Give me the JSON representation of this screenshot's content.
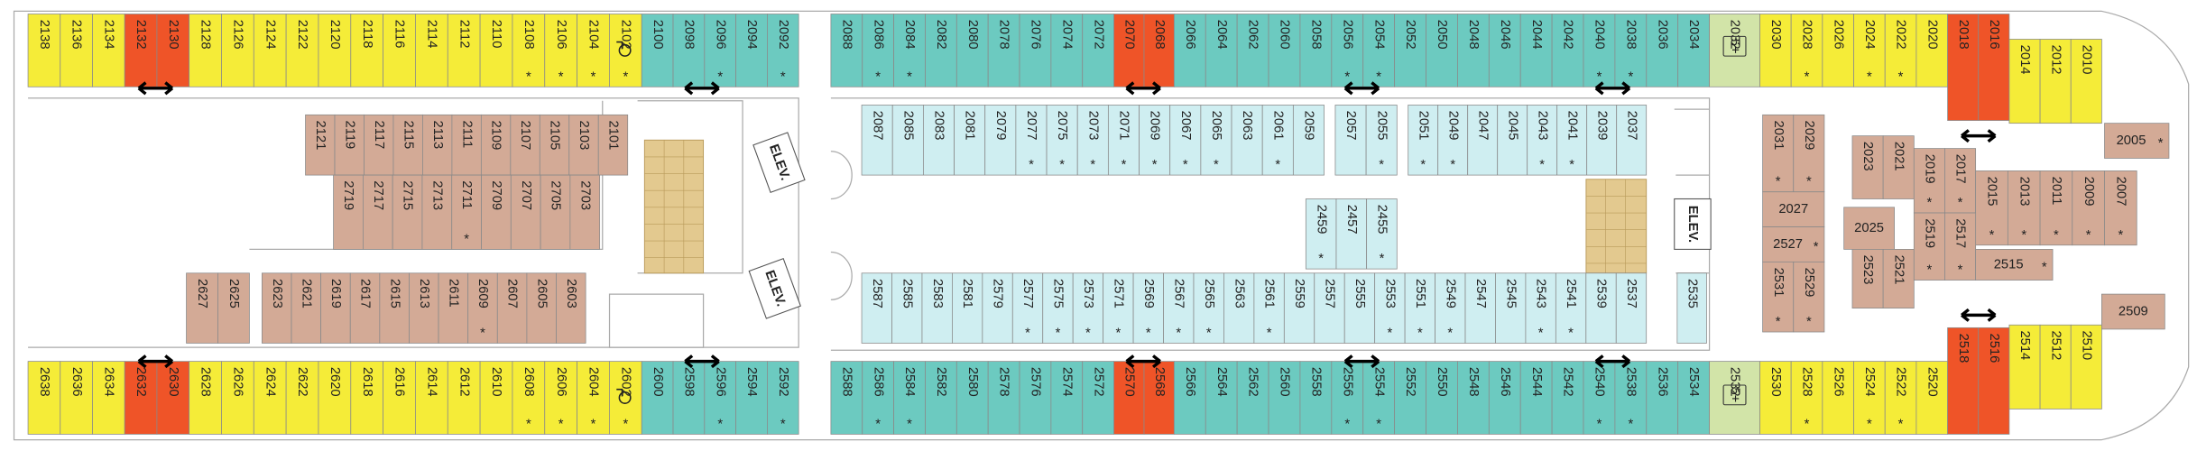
{
  "groups": [
    {
      "cabins": [
        {
          "no": "2138"
        },
        {
          "no": "2136"
        },
        {
          "no": "2134"
        }
      ]
    },
    {
      "cabins": [
        {
          "no": "2132"
        },
        {
          "no": "2130"
        }
      ]
    },
    {
      "cabins": [
        {
          "no": "2128"
        },
        {
          "no": "2126"
        },
        {
          "no": "2124"
        },
        {
          "no": "2122"
        },
        {
          "no": "2120"
        },
        {
          "no": "2118"
        },
        {
          "no": "2116"
        },
        {
          "no": "2114"
        },
        {
          "no": "2112"
        },
        {
          "no": "2110"
        },
        {
          "no": "2108",
          "mark": "*"
        },
        {
          "no": "2106",
          "mark": "*"
        },
        {
          "no": "2104",
          "mark": "*"
        },
        {
          "no": "2102",
          "mark": "*"
        }
      ]
    },
    {
      "cabins": [
        {
          "no": "2100"
        },
        {
          "no": "2098"
        },
        {
          "no": "2096",
          "mark": "*"
        },
        {
          "no": "2094"
        },
        {
          "no": "2092",
          "mark": "*"
        }
      ]
    },
    {
      "cabins": [
        {
          "no": "2088"
        },
        {
          "no": "2086",
          "mark": "*"
        },
        {
          "no": "2084",
          "mark": "*"
        },
        {
          "no": "2082"
        },
        {
          "no": "2080"
        },
        {
          "no": "2078"
        },
        {
          "no": "2076"
        },
        {
          "no": "2074"
        },
        {
          "no": "2072"
        }
      ]
    },
    {
      "cabins": [
        {
          "no": "2070"
        },
        {
          "no": "2068"
        }
      ]
    },
    {
      "cabins": [
        {
          "no": "2066"
        },
        {
          "no": "2064"
        },
        {
          "no": "2062"
        },
        {
          "no": "2060"
        },
        {
          "no": "2058"
        },
        {
          "no": "2056",
          "mark": "*"
        },
        {
          "no": "2054",
          "mark": "*"
        },
        {
          "no": "2052"
        },
        {
          "no": "2050"
        },
        {
          "no": "2048"
        },
        {
          "no": "2046"
        },
        {
          "no": "2044"
        },
        {
          "no": "2042"
        },
        {
          "no": "2040",
          "mark": "*"
        },
        {
          "no": "2038",
          "mark": "*"
        },
        {
          "no": "2036"
        },
        {
          "no": "2034"
        }
      ]
    },
    {
      "cabins": [
        {
          "no": "2032"
        }
      ]
    },
    {
      "cabins": [
        {
          "no": "2030"
        },
        {
          "no": "2028",
          "mark": "*"
        },
        {
          "no": "2026"
        },
        {
          "no": "2024",
          "mark": "*"
        },
        {
          "no": "2022",
          "mark": "*"
        },
        {
          "no": "2020"
        }
      ]
    },
    {
      "cabins": [
        {
          "no": "2018"
        },
        {
          "no": "2016"
        }
      ]
    },
    {
      "cabins": [
        {
          "no": "2014"
        },
        {
          "no": "2012"
        },
        {
          "no": "2010"
        }
      ]
    },
    {
      "cabins": [
        {
          "no": "2638"
        },
        {
          "no": "2636"
        },
        {
          "no": "2634"
        }
      ]
    },
    {
      "cabins": [
        {
          "no": "2632"
        },
        {
          "no": "2630"
        }
      ]
    },
    {
      "cabins": [
        {
          "no": "2628"
        },
        {
          "no": "2626"
        },
        {
          "no": "2624"
        },
        {
          "no": "2622"
        },
        {
          "no": "2620"
        },
        {
          "no": "2618"
        },
        {
          "no": "2616"
        },
        {
          "no": "2614"
        },
        {
          "no": "2612"
        },
        {
          "no": "2610"
        },
        {
          "no": "2608",
          "mark": "*"
        },
        {
          "no": "2606",
          "mark": "*"
        },
        {
          "no": "2604",
          "mark": "*"
        },
        {
          "no": "2602",
          "mark": "*"
        }
      ]
    },
    {
      "cabins": [
        {
          "no": "2600"
        },
        {
          "no": "2598"
        },
        {
          "no": "2596",
          "mark": "*"
        },
        {
          "no": "2594"
        },
        {
          "no": "2592",
          "mark": "*"
        }
      ]
    },
    {
      "cabins": [
        {
          "no": "2588"
        },
        {
          "no": "2586",
          "mark": "*"
        },
        {
          "no": "2584",
          "mark": "*"
        },
        {
          "no": "2582"
        },
        {
          "no": "2580"
        },
        {
          "no": "2578"
        },
        {
          "no": "2576"
        },
        {
          "no": "2574"
        },
        {
          "no": "2572"
        }
      ]
    },
    {
      "cabins": [
        {
          "no": "2570"
        },
        {
          "no": "2568"
        }
      ]
    },
    {
      "cabins": [
        {
          "no": "2566"
        },
        {
          "no": "2564"
        },
        {
          "no": "2562"
        },
        {
          "no": "2560"
        },
        {
          "no": "2558"
        },
        {
          "no": "2556",
          "mark": "*"
        },
        {
          "no": "2554",
          "mark": "*"
        },
        {
          "no": "2552"
        },
        {
          "no": "2550"
        },
        {
          "no": "2548"
        },
        {
          "no": "2546"
        },
        {
          "no": "2544"
        },
        {
          "no": "2542"
        },
        {
          "no": "2540",
          "mark": "*"
        },
        {
          "no": "2538",
          "mark": "*"
        },
        {
          "no": "2536"
        },
        {
          "no": "2534"
        }
      ]
    },
    {
      "cabins": [
        {
          "no": "2532"
        }
      ]
    },
    {
      "cabins": [
        {
          "no": "2530"
        },
        {
          "no": "2528",
          "mark": "*"
        },
        {
          "no": "2526"
        },
        {
          "no": "2524",
          "mark": "*"
        },
        {
          "no": "2522",
          "mark": "*"
        },
        {
          "no": "2520"
        }
      ]
    },
    {
      "cabins": [
        {
          "no": "2518"
        },
        {
          "no": "2516"
        }
      ]
    },
    {
      "cabins": [
        {
          "no": "2514"
        },
        {
          "no": "2512"
        },
        {
          "no": "2510"
        }
      ]
    },
    {
      "cabins": [
        {
          "no": "2121"
        },
        {
          "no": "2119"
        },
        {
          "no": "2117"
        },
        {
          "no": "2115"
        },
        {
          "no": "2113"
        },
        {
          "no": "2111"
        },
        {
          "no": "2109"
        },
        {
          "no": "2107"
        },
        {
          "no": "2105"
        },
        {
          "no": "2103"
        },
        {
          "no": "2101"
        }
      ]
    },
    {
      "cabins": [
        {
          "no": "2719"
        },
        {
          "no": "2717"
        },
        {
          "no": "2715"
        },
        {
          "no": "2713"
        },
        {
          "no": "2711",
          "mark": "*"
        },
        {
          "no": "2709"
        },
        {
          "no": "2707"
        },
        {
          "no": "2705"
        },
        {
          "no": "2703"
        }
      ]
    },
    {
      "cabins": [
        {
          "no": "2627"
        },
        {
          "no": "2625"
        }
      ]
    },
    {
      "cabins": [
        {
          "no": "2623"
        },
        {
          "no": "2621"
        },
        {
          "no": "2619"
        },
        {
          "no": "2617"
        },
        {
          "no": "2615"
        },
        {
          "no": "2613"
        },
        {
          "no": "2611"
        },
        {
          "no": "2609",
          "mark": "*"
        },
        {
          "no": "2607"
        },
        {
          "no": "2605"
        },
        {
          "no": "2603"
        }
      ]
    },
    {
      "cabins": [
        {
          "no": "2087"
        },
        {
          "no": "2085"
        },
        {
          "no": "2083"
        },
        {
          "no": "2081"
        },
        {
          "no": "2079"
        },
        {
          "no": "2077",
          "mark": "*"
        },
        {
          "no": "2075",
          "mark": "*"
        },
        {
          "no": "2073",
          "mark": "*"
        },
        {
          "no": "2071",
          "mark": "*"
        },
        {
          "no": "2069",
          "mark": "*"
        },
        {
          "no": "2067",
          "mark": "*"
        },
        {
          "no": "2065",
          "mark": "*"
        },
        {
          "no": "2063"
        },
        {
          "no": "2061",
          "mark": "*"
        },
        {
          "no": "2059"
        }
      ]
    },
    {
      "cabins": [
        {
          "no": "2057"
        },
        {
          "no": "2055",
          "mark": "*"
        }
      ]
    },
    {
      "cabins": [
        {
          "no": "2051",
          "mark": "*"
        },
        {
          "no": "2049",
          "mark": "*"
        },
        {
          "no": "2047"
        },
        {
          "no": "2045"
        },
        {
          "no": "2043",
          "mark": "*"
        },
        {
          "no": "2041",
          "mark": "*"
        },
        {
          "no": "2039"
        },
        {
          "no": "2037"
        }
      ]
    },
    {
      "cabins": [
        {
          "no": "2459",
          "mark": "*"
        },
        {
          "no": "2457"
        },
        {
          "no": "2455",
          "mark": "*"
        }
      ]
    },
    {
      "cabins": [
        {
          "no": "2587"
        },
        {
          "no": "2585"
        },
        {
          "no": "2583"
        },
        {
          "no": "2581"
        },
        {
          "no": "2579"
        },
        {
          "no": "2577",
          "mark": "*"
        },
        {
          "no": "2575",
          "mark": "*"
        },
        {
          "no": "2573",
          "mark": "*"
        },
        {
          "no": "2571",
          "mark": "*"
        },
        {
          "no": "2569",
          "mark": "*"
        },
        {
          "no": "2567",
          "mark": "*"
        },
        {
          "no": "2565",
          "mark": "*"
        },
        {
          "no": "2563"
        },
        {
          "no": "2561",
          "mark": "*"
        },
        {
          "no": "2559"
        },
        {
          "no": "2557"
        },
        {
          "no": "2555"
        },
        {
          "no": "2553",
          "mark": "*"
        },
        {
          "no": "2551",
          "mark": "*"
        },
        {
          "no": "2549",
          "mark": "*"
        },
        {
          "no": "2547"
        },
        {
          "no": "2545"
        },
        {
          "no": "2543",
          "mark": "*"
        },
        {
          "no": "2541",
          "mark": "*"
        },
        {
          "no": "2539"
        },
        {
          "no": "2537"
        }
      ]
    },
    {
      "cabins": [
        {
          "no": "2535"
        }
      ]
    },
    {
      "cabins": [
        {
          "no": "2031",
          "mark": "*"
        },
        {
          "no": "2029",
          "mark": "*"
        }
      ]
    },
    {
      "cabins": [
        {
          "no": "2023"
        },
        {
          "no": "2021"
        }
      ]
    },
    {
      "cabins": [
        {
          "no": "2019",
          "mark": "*"
        },
        {
          "no": "2017",
          "mark": "*"
        }
      ]
    },
    {
      "cabins": [
        {
          "no": "2015",
          "mark": "*"
        },
        {
          "no": "2013",
          "mark": "*"
        },
        {
          "no": "2011",
          "mark": "*"
        },
        {
          "no": "2009",
          "mark": "*"
        },
        {
          "no": "2007",
          "mark": "*"
        }
      ]
    },
    {
      "cabins": [
        {
          "no": "2027"
        }
      ]
    },
    {
      "cabins": [
        {
          "no": "2527",
          "mark": "*"
        }
      ]
    },
    {
      "cabins": [
        {
          "no": "2531",
          "mark": "*"
        },
        {
          "no": "2529",
          "mark": "*"
        }
      ]
    },
    {
      "cabins": [
        {
          "no": "2025"
        }
      ]
    },
    {
      "cabins": [
        {
          "no": "2523"
        },
        {
          "no": "2521"
        }
      ]
    },
    {
      "cabins": [
        {
          "no": "2519",
          "mark": "*"
        },
        {
          "no": "2517",
          "mark": "*"
        }
      ]
    },
    {
      "cabins": [
        {
          "no": "2515",
          "mark": "*"
        }
      ]
    },
    {
      "cabins": [
        {
          "no": "2005",
          "mark": "*"
        }
      ]
    },
    {
      "cabins": [
        {
          "no": "2509"
        }
      ]
    }
  ],
  "labels": [
    "ELEV.",
    "ELEV.",
    "ELEV.",
    "5+",
    "5+"
  ]
}
